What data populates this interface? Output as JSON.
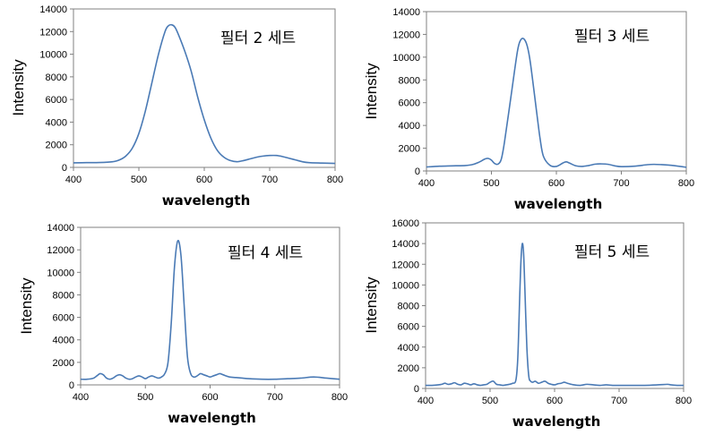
{
  "chart_data": [
    {
      "type": "line",
      "title": "필터 2 세트",
      "xlabel": "wavelength",
      "ylabel": "Intensity",
      "xlim": [
        400,
        800
      ],
      "ylim": [
        0,
        14000
      ],
      "xticks": [
        400,
        500,
        600,
        700,
        800
      ],
      "yticks": [
        0,
        2000,
        4000,
        6000,
        8000,
        10000,
        12000,
        14000
      ],
      "series": [
        {
          "name": "",
          "x": [
            400,
            420,
            440,
            460,
            470,
            480,
            490,
            500,
            510,
            520,
            530,
            540,
            545,
            550,
            555,
            560,
            570,
            580,
            590,
            600,
            610,
            620,
            630,
            640,
            650,
            660,
            670,
            680,
            690,
            700,
            710,
            720,
            730,
            740,
            750,
            760,
            780,
            800
          ],
          "y": [
            400,
            420,
            430,
            500,
            650,
            1000,
            1700,
            3000,
            5000,
            7500,
            10000,
            12000,
            12500,
            12600,
            12400,
            11800,
            10300,
            8500,
            6200,
            4200,
            2600,
            1500,
            900,
            600,
            500,
            600,
            750,
            900,
            1000,
            1050,
            1050,
            950,
            800,
            650,
            500,
            420,
            380,
            350
          ]
        }
      ]
    },
    {
      "type": "line",
      "title": "필터 3 세트",
      "xlabel": "wavelength",
      "ylabel": "Intensity",
      "xlim": [
        400,
        800
      ],
      "ylim": [
        0,
        14000
      ],
      "xticks": [
        400,
        500,
        600,
        700,
        800
      ],
      "yticks": [
        0,
        2000,
        4000,
        6000,
        8000,
        10000,
        12000,
        14000
      ],
      "series": [
        {
          "name": "",
          "x": [
            400,
            420,
            440,
            460,
            470,
            480,
            490,
            495,
            500,
            505,
            510,
            515,
            520,
            530,
            540,
            545,
            550,
            555,
            560,
            570,
            575,
            580,
            590,
            600,
            610,
            615,
            620,
            630,
            640,
            650,
            660,
            670,
            680,
            690,
            700,
            720,
            740,
            750,
            760,
            780,
            800
          ],
          "y": [
            350,
            420,
            450,
            480,
            550,
            750,
            1050,
            1100,
            950,
            650,
            600,
            1000,
            2500,
            6500,
            10500,
            11500,
            11600,
            11000,
            9500,
            5000,
            2800,
            1300,
            500,
            400,
            700,
            800,
            700,
            450,
            400,
            480,
            600,
            620,
            580,
            450,
            380,
            420,
            550,
            580,
            560,
            480,
            320
          ]
        }
      ]
    },
    {
      "type": "line",
      "title": "필터 4 세트",
      "xlabel": "wavelength",
      "ylabel": "Intensity",
      "xlim": [
        400,
        800
      ],
      "ylim": [
        0,
        14000
      ],
      "xticks": [
        400,
        500,
        600,
        700,
        800
      ],
      "yticks": [
        0,
        2000,
        4000,
        6000,
        8000,
        10000,
        12000,
        14000
      ],
      "series": [
        {
          "name": "",
          "x": [
            400,
            410,
            420,
            425,
            430,
            435,
            440,
            445,
            450,
            455,
            460,
            465,
            470,
            475,
            480,
            485,
            490,
            495,
            500,
            505,
            510,
            515,
            520,
            525,
            530,
            535,
            540,
            545,
            550,
            555,
            560,
            565,
            570,
            575,
            580,
            585,
            590,
            595,
            600,
            605,
            610,
            615,
            620,
            630,
            640,
            650,
            660,
            680,
            700,
            720,
            740,
            760,
            780,
            800
          ],
          "y": [
            500,
            500,
            600,
            800,
            1000,
            900,
            600,
            500,
            600,
            800,
            900,
            800,
            600,
            500,
            550,
            700,
            800,
            700,
            550,
            700,
            800,
            700,
            600,
            700,
            1000,
            2000,
            5500,
            10500,
            12800,
            11500,
            7000,
            2500,
            1000,
            700,
            800,
            1000,
            900,
            800,
            700,
            800,
            900,
            1000,
            900,
            700,
            650,
            600,
            550,
            500,
            500,
            550,
            600,
            700,
            600,
            500
          ]
        }
      ]
    },
    {
      "type": "line",
      "title": "필터 5 세트",
      "xlabel": "wavelength",
      "ylabel": "Intensity",
      "xlim": [
        400,
        800
      ],
      "ylim": [
        0,
        16000
      ],
      "xticks": [
        400,
        500,
        600,
        700,
        800
      ],
      "yticks": [
        0,
        2000,
        4000,
        6000,
        8000,
        10000,
        12000,
        14000,
        16000
      ],
      "series": [
        {
          "name": "",
          "x": [
            400,
            410,
            420,
            425,
            430,
            435,
            440,
            445,
            450,
            455,
            460,
            465,
            470,
            475,
            480,
            485,
            490,
            495,
            500,
            505,
            510,
            515,
            520,
            525,
            530,
            535,
            540,
            543,
            546,
            548,
            550,
            552,
            554,
            557,
            560,
            563,
            566,
            570,
            575,
            580,
            585,
            590,
            595,
            600,
            605,
            610,
            615,
            620,
            630,
            640,
            650,
            660,
            670,
            680,
            690,
            700,
            720,
            740,
            760,
            775,
            780,
            790,
            800
          ],
          "y": [
            300,
            300,
            350,
            400,
            500,
            400,
            450,
            550,
            400,
            350,
            500,
            450,
            350,
            450,
            350,
            300,
            350,
            400,
            600,
            700,
            400,
            350,
            300,
            350,
            400,
            500,
            800,
            3000,
            9000,
            12500,
            14000,
            13000,
            9500,
            4000,
            1200,
            700,
            600,
            700,
            500,
            600,
            700,
            500,
            400,
            350,
            450,
            500,
            600,
            500,
            350,
            300,
            400,
            350,
            300,
            350,
            300,
            300,
            300,
            300,
            350,
            400,
            350,
            300,
            300
          ]
        }
      ]
    }
  ]
}
